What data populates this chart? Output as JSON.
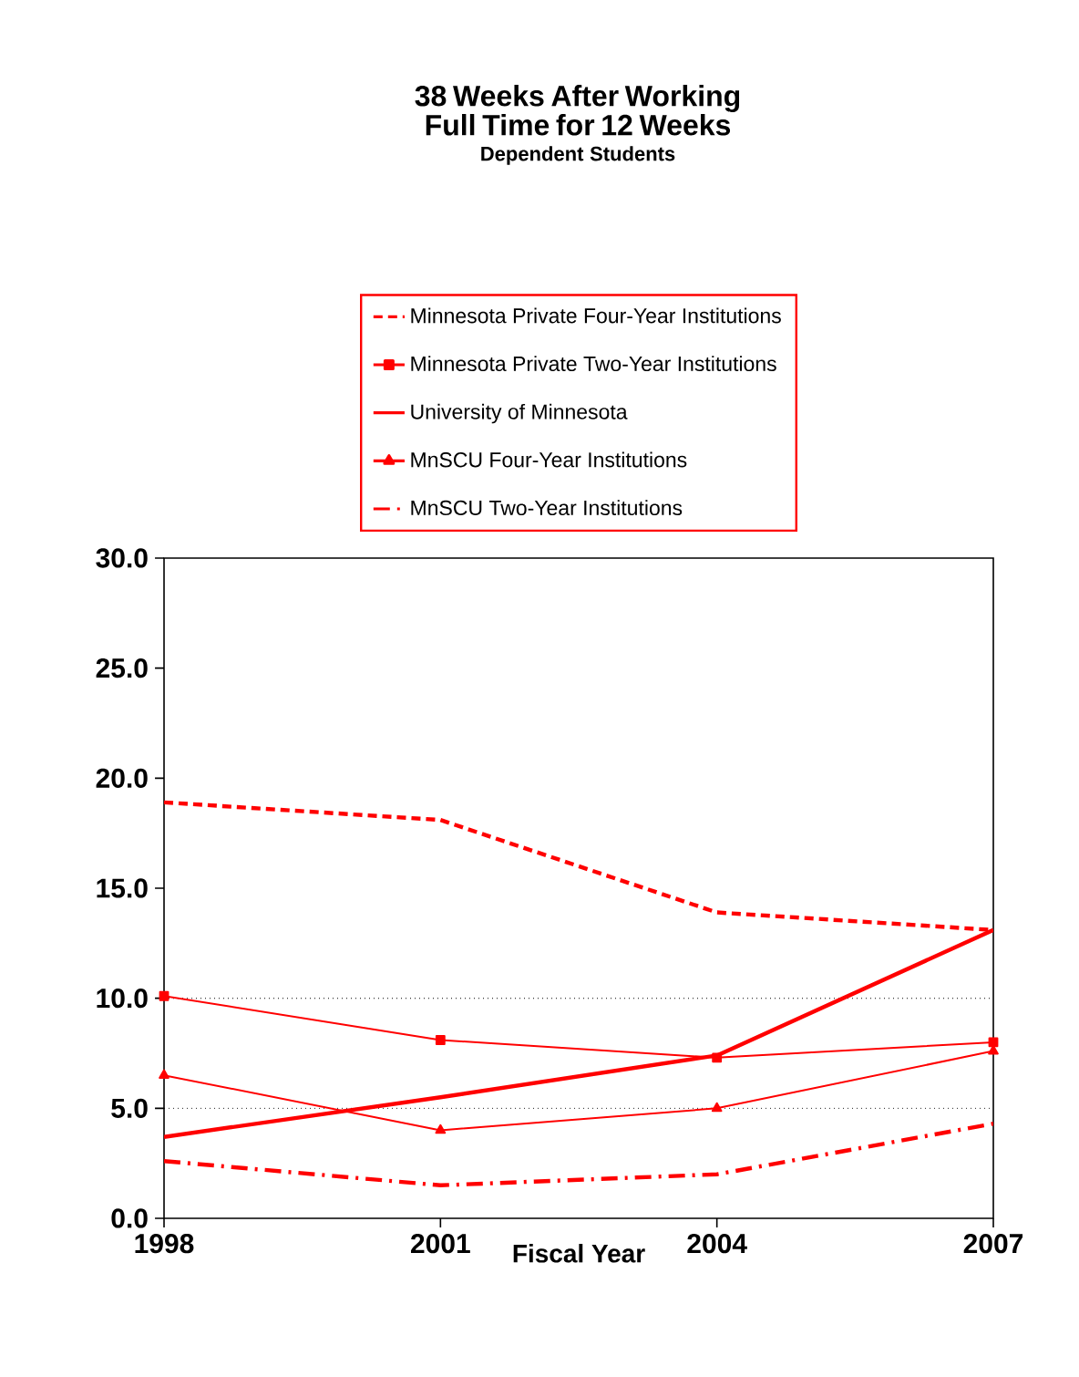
{
  "chart_data": {
    "type": "line",
    "title": "38 Weeks After Working Full Time for 12 Weeks",
    "subtitle": "Dependent Students",
    "xlabel": "Fiscal Year",
    "x": [
      1998,
      2001,
      2004,
      2007
    ],
    "xlim": [
      1998,
      2007
    ],
    "xticks": [
      1998,
      2001,
      2004,
      2007
    ],
    "ylim": [
      0,
      30
    ],
    "yticks": [
      {
        "value": 0,
        "label": "0.0"
      },
      {
        "value": 5,
        "label": "5.0"
      },
      {
        "value": 10,
        "label": "10.0"
      },
      {
        "value": 15,
        "label": "15.0"
      },
      {
        "value": 20,
        "label": "20.0"
      },
      {
        "value": 25,
        "label": "25.0"
      },
      {
        "value": 30,
        "label": "30.0"
      }
    ],
    "legend": "top",
    "ref_lines": [
      {
        "axis": "y",
        "value": 5,
        "color": "#000000",
        "line_style": "dotted"
      },
      {
        "axis": "y",
        "value": 10,
        "color": "#000000",
        "line_style": "dotted"
      }
    ],
    "series": [
      {
        "name": "Minnesota Private Four-Year Institutions",
        "color": "#ff0000",
        "line_style": "dashed",
        "marker": "none",
        "values": [
          18.9,
          18.1,
          13.9,
          13.1
        ]
      },
      {
        "name": "Minnesota Private Two-Year Institutions",
        "color": "#ff0000",
        "line_style": "solid",
        "marker": "square",
        "values": [
          10.1,
          8.1,
          7.3,
          8.0
        ]
      },
      {
        "name": "University of Minnesota",
        "color": "#ff0000",
        "line_style": "solid",
        "marker": "none",
        "values": [
          3.7,
          5.5,
          7.4,
          13.1
        ]
      },
      {
        "name": "MnSCU Four-Year Institutions",
        "color": "#ff0000",
        "line_style": "solid",
        "marker": "triangle",
        "values": [
          6.5,
          4.0,
          5.0,
          7.6
        ]
      },
      {
        "name": "MnSCU Two-Year Institutions",
        "color": "#ff0000",
        "line_style": "dashdot",
        "marker": "none",
        "values": [
          2.6,
          1.5,
          2.0,
          4.3
        ]
      }
    ]
  }
}
